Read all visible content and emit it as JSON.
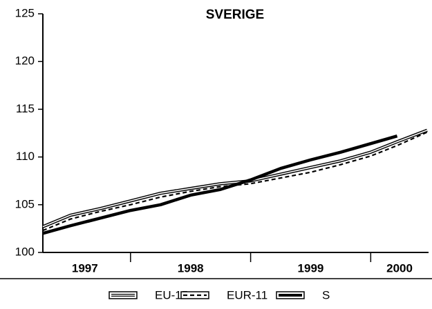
{
  "chart_data": {
    "type": "line",
    "title": "SVERIGE",
    "x": [
      1997.27,
      1997.5,
      1997.75,
      1998,
      1998.25,
      1998.5,
      1998.75,
      1999,
      1999.25,
      1999.5,
      1999.75,
      2000,
      2000.22,
      2000.47
    ],
    "series": [
      {
        "name": "EU-15",
        "color": "#000000",
        "style": "double",
        "values": [
          102.7,
          103.9,
          104.6,
          105.4,
          106.2,
          106.7,
          107.2,
          107.5,
          108.2,
          108.9,
          109.6,
          110.5,
          111.6,
          112.8
        ]
      },
      {
        "name": "EUR-11",
        "color": "#000000",
        "style": "dashed",
        "values": [
          102.3,
          103.5,
          104.3,
          105.0,
          105.8,
          106.4,
          106.9,
          107.2,
          107.8,
          108.4,
          109.2,
          110.1,
          111.2,
          112.6
        ]
      },
      {
        "name": "S",
        "color": "#000000",
        "style": "thick",
        "values": [
          102.0,
          102.8,
          103.6,
          104.4,
          105.0,
          106.0,
          106.6,
          107.6,
          108.8,
          109.7,
          110.5,
          111.4,
          112.2,
          null
        ]
      }
    ],
    "xlim": [
      1997.27,
      2000.47
    ],
    "xticks": [
      1998,
      1999,
      2000
    ],
    "xtick_labels": [
      {
        "value": 1997.62,
        "label": "1997"
      },
      {
        "value": 1998.5,
        "label": "1998"
      },
      {
        "value": 1999.5,
        "label": "1999"
      },
      {
        "value": 2000.24,
        "label": "2000"
      }
    ],
    "ylim": [
      100,
      125
    ],
    "yticks": [
      100,
      105,
      110,
      115,
      120,
      125
    ],
    "grid": false,
    "legend": "bottom"
  }
}
